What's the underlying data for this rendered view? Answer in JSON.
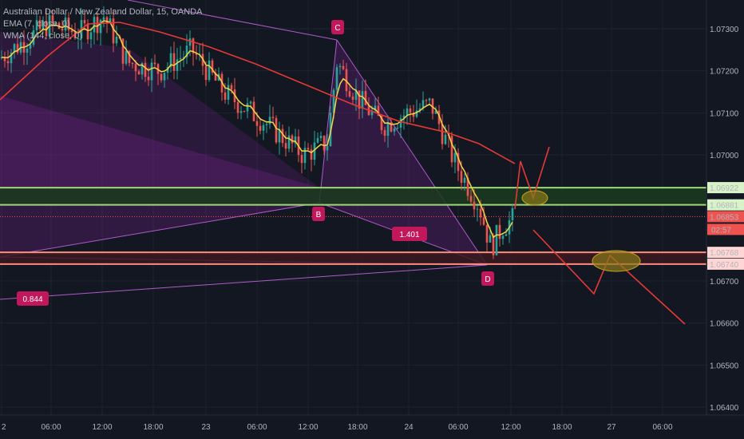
{
  "legend": {
    "symbol": "Australian Dollar / New Zealand Dollar, 15, OANDA",
    "ema": "EMA (7, close, 0)",
    "wma": "WMA (144, close, 0)"
  },
  "chart_data": {
    "type": "candlestick",
    "y_ticks": [
      "1.07300",
      "1.07200",
      "1.07100",
      "1.07000",
      "1.06922",
      "1.06881",
      "1.06853",
      "1.06768",
      "1.06740",
      "1.06700",
      "1.06600",
      "1.06500",
      "1.06400"
    ],
    "y_tick_values": [
      1.073,
      1.072,
      1.071,
      1.07,
      1.06922,
      1.06881,
      1.06853,
      1.06768,
      1.0674,
      1.067,
      1.066,
      1.065,
      1.064
    ],
    "x_ticks": [
      "2",
      "06:00",
      "12:00",
      "18:00",
      "23",
      "06:00",
      "12:00",
      "18:00",
      "24",
      "06:00",
      "12:00",
      "18:00",
      "27",
      "06:00"
    ],
    "current_price": "1.06853",
    "countdown": "02:57",
    "pattern_points": [
      "B",
      "C",
      "D"
    ],
    "ratios": [
      "1.401",
      "0.844"
    ],
    "zones": [
      {
        "name": "green-resistance",
        "top": 1.06922,
        "bottom": 1.06881,
        "color": "#9fd87a"
      },
      {
        "name": "red-support",
        "top": 1.06768,
        "bottom": 1.0674,
        "color": "#ff8a80"
      }
    ],
    "colors": {
      "up": "#26a69a",
      "down": "#ef5350",
      "ema": "#f5d547",
      "wma": "#e53935",
      "harmonic": "#9c27b0",
      "label": "#c2185b"
    }
  }
}
